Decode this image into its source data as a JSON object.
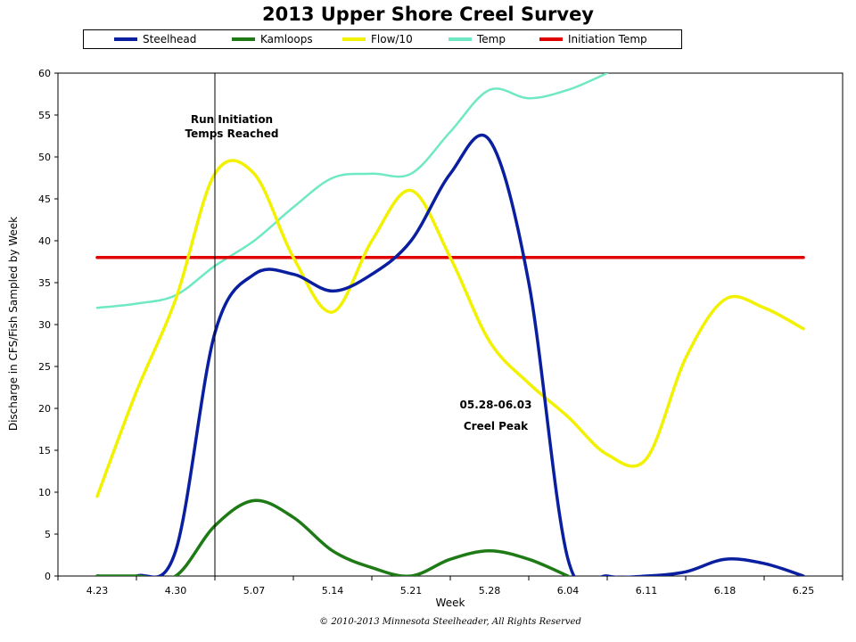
{
  "chart_data": {
    "type": "line",
    "title": "2013 Upper Shore Creel Survey",
    "xlabel": "Week",
    "ylabel": "Discharge in CFS/Fish Sampled by Week",
    "ylim": [
      0,
      60
    ],
    "yticks": [
      0,
      5,
      10,
      15,
      20,
      25,
      30,
      35,
      40,
      45,
      50,
      55,
      60
    ],
    "categories": [
      "4.23",
      "4.30",
      "5.07",
      "5.14",
      "5.21",
      "5.28",
      "6.04",
      "6.11",
      "6.18",
      "6.25"
    ],
    "grid": false,
    "legend_position": "top",
    "series": [
      {
        "name": "Steelhead",
        "color": "#0a1fa0",
        "x": [
          0,
          0.5,
          1,
          1.5,
          2,
          2.5,
          3,
          3.5,
          4,
          4.5,
          5,
          5.5,
          6,
          6.5,
          7,
          7.5,
          8,
          8.5,
          9
        ],
        "values": [
          0,
          0,
          3,
          29,
          36,
          36,
          34,
          36,
          40,
          48,
          52,
          35,
          2,
          0,
          0,
          0.5,
          2,
          1.5,
          0
        ]
      },
      {
        "name": "Kamloops",
        "color": "#1e7a14",
        "x": [
          0,
          0.5,
          1,
          1.5,
          2,
          2.5,
          3,
          3.5,
          4,
          4.5,
          5,
          5.5,
          6
        ],
        "values": [
          0,
          0,
          0,
          6,
          9,
          7,
          3,
          1,
          0,
          2,
          3,
          2,
          0
        ]
      },
      {
        "name": "Flow/10",
        "color": "#f2f200",
        "x": [
          0,
          0.5,
          1,
          1.5,
          2,
          2.5,
          3,
          3.5,
          4,
          4.5,
          5,
          5.5,
          6,
          6.5,
          7,
          7.5,
          8,
          8.5,
          9
        ],
        "values": [
          9.5,
          22,
          33,
          48,
          48,
          38,
          31.5,
          40,
          46,
          38,
          28,
          23,
          19,
          14.5,
          14,
          26,
          33,
          32,
          29.5
        ]
      },
      {
        "name": "Temp",
        "color": "#6fe8c4",
        "x": [
          0,
          0.5,
          1,
          1.5,
          2,
          2.5,
          3,
          3.5,
          4,
          4.5,
          5,
          5.5,
          6,
          6.5
        ],
        "values": [
          32,
          32.5,
          33.5,
          37,
          40,
          44,
          47.5,
          48,
          48,
          53,
          58,
          57,
          58,
          60
        ]
      },
      {
        "name": "Initiation Temp",
        "color": "#e00000",
        "x": [
          0,
          9
        ],
        "values": [
          38,
          38
        ]
      }
    ],
    "vertical_line_x": 1.5,
    "annotations": [
      {
        "lines": [
          "Run Initiation",
          "Temps Reached"
        ]
      },
      {
        "lines": [
          "05.28-06.03",
          "Creel Peak"
        ]
      }
    ]
  },
  "copyright": "© 2010-2013 Minnesota Steelheader, All Rights Reserved"
}
